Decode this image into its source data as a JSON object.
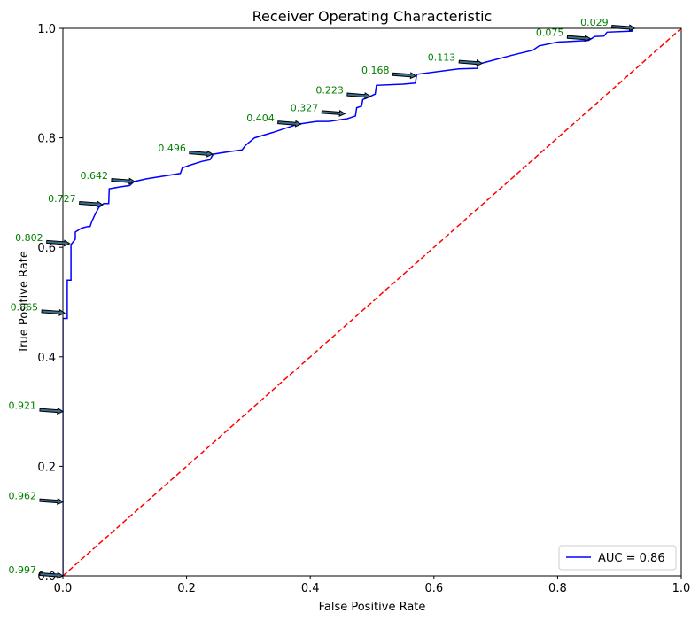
{
  "chart_data": {
    "type": "line",
    "title": "Receiver Operating Characteristic",
    "xlabel": "False Positive Rate",
    "ylabel": "True Positive Rate",
    "xlim": [
      0.0,
      1.0
    ],
    "ylim": [
      0.0,
      1.0
    ],
    "xticks": [
      {
        "v": 0.0,
        "label": "0.0"
      },
      {
        "v": 0.2,
        "label": "0.2"
      },
      {
        "v": 0.4,
        "label": "0.4"
      },
      {
        "v": 0.6,
        "label": "0.6"
      },
      {
        "v": 0.8,
        "label": "0.8"
      },
      {
        "v": 1.0,
        "label": "1.0"
      }
    ],
    "yticks": [
      {
        "v": 0.0,
        "label": "0.0"
      },
      {
        "v": 0.2,
        "label": "0.2"
      },
      {
        "v": 0.4,
        "label": "0.4"
      },
      {
        "v": 0.6,
        "label": "0.6"
      },
      {
        "v": 0.8,
        "label": "0.8"
      },
      {
        "v": 1.0,
        "label": "1.0"
      }
    ],
    "grid": false,
    "legend_position": "lower-right",
    "series": [
      {
        "name": "AUC = 0.86",
        "color": "#0000ff",
        "style": "solid",
        "points": [
          [
            0,
            0
          ],
          [
            0,
            0.47
          ],
          [
            0.007,
            0.47
          ],
          [
            0.007,
            0.54
          ],
          [
            0.013,
            0.54
          ],
          [
            0.013,
            0.605
          ],
          [
            0.02,
            0.615
          ],
          [
            0.02,
            0.628
          ],
          [
            0.03,
            0.635
          ],
          [
            0.04,
            0.638
          ],
          [
            0.044,
            0.638
          ],
          [
            0.047,
            0.648
          ],
          [
            0.052,
            0.66
          ],
          [
            0.058,
            0.673
          ],
          [
            0.066,
            0.68
          ],
          [
            0.074,
            0.68
          ],
          [
            0.075,
            0.707
          ],
          [
            0.09,
            0.71
          ],
          [
            0.108,
            0.713
          ],
          [
            0.115,
            0.72
          ],
          [
            0.135,
            0.725
          ],
          [
            0.19,
            0.735
          ],
          [
            0.193,
            0.745
          ],
          [
            0.205,
            0.75
          ],
          [
            0.225,
            0.757
          ],
          [
            0.238,
            0.76
          ],
          [
            0.243,
            0.77
          ],
          [
            0.27,
            0.775
          ],
          [
            0.29,
            0.778
          ],
          [
            0.295,
            0.786
          ],
          [
            0.31,
            0.8
          ],
          [
            0.34,
            0.81
          ],
          [
            0.38,
            0.825
          ],
          [
            0.41,
            0.83
          ],
          [
            0.43,
            0.83
          ],
          [
            0.46,
            0.835
          ],
          [
            0.473,
            0.84
          ],
          [
            0.475,
            0.855
          ],
          [
            0.483,
            0.858
          ],
          [
            0.485,
            0.87
          ],
          [
            0.49,
            0.872
          ],
          [
            0.505,
            0.88
          ],
          [
            0.507,
            0.896
          ],
          [
            0.55,
            0.898
          ],
          [
            0.57,
            0.9
          ],
          [
            0.572,
            0.916
          ],
          [
            0.64,
            0.926
          ],
          [
            0.67,
            0.927
          ],
          [
            0.672,
            0.935
          ],
          [
            0.68,
            0.937
          ],
          [
            0.73,
            0.952
          ],
          [
            0.76,
            0.96
          ],
          [
            0.77,
            0.968
          ],
          [
            0.8,
            0.975
          ],
          [
            0.85,
            0.978
          ],
          [
            0.86,
            0.985
          ],
          [
            0.875,
            0.986
          ],
          [
            0.88,
            0.993
          ],
          [
            0.92,
            0.995
          ],
          [
            0.92,
            1.0
          ]
        ]
      },
      {
        "name": "",
        "color": "#ff0000",
        "style": "dashed",
        "points": [
          [
            0,
            0
          ],
          [
            1,
            1
          ]
        ]
      }
    ],
    "annotations": [
      {
        "text": "0.997",
        "x": 0.0,
        "y": 0.0
      },
      {
        "text": "0.962",
        "x": 0.0,
        "y": 0.135
      },
      {
        "text": "0.921",
        "x": 0.0,
        "y": 0.3
      },
      {
        "text": "0.865",
        "x": 0.003,
        "y": 0.48
      },
      {
        "text": "0.802",
        "x": 0.011,
        "y": 0.607
      },
      {
        "text": "0.727",
        "x": 0.064,
        "y": 0.678
      },
      {
        "text": "0.642",
        "x": 0.116,
        "y": 0.72
      },
      {
        "text": "0.496",
        "x": 0.242,
        "y": 0.77
      },
      {
        "text": "0.404",
        "x": 0.385,
        "y": 0.825
      },
      {
        "text": "0.327",
        "x": 0.456,
        "y": 0.844
      },
      {
        "text": "0.223",
        "x": 0.497,
        "y": 0.876
      },
      {
        "text": "0.168",
        "x": 0.571,
        "y": 0.913
      },
      {
        "text": "0.113",
        "x": 0.678,
        "y": 0.936
      },
      {
        "text": "0.075",
        "x": 0.853,
        "y": 0.981
      },
      {
        "text": "0.029",
        "x": 0.925,
        "y": 1.0
      }
    ],
    "annotation_color": "#008000"
  }
}
